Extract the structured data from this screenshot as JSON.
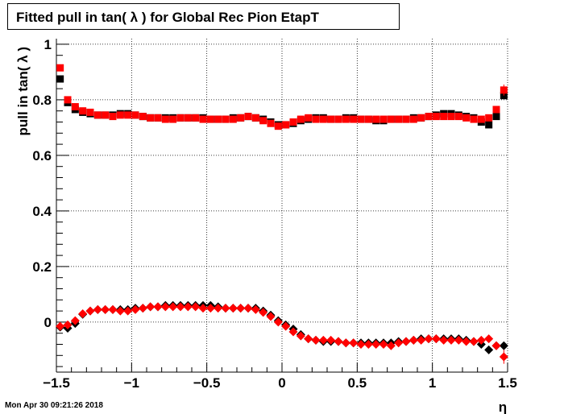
{
  "title": "Fitted pull in tan( λ ) for Global Rec Pion EtapT",
  "footer_date": "Mon Apr 30 09:21:26 2018",
  "colors": {
    "series_black": "#000000",
    "series_red": "#ff0000",
    "grid": "#000000",
    "background": "#ffffff"
  },
  "chart_data": {
    "type": "scatter",
    "title": "Fitted pull in tan( λ ) for Global Rec Pion EtapT",
    "xlabel": "η",
    "ylabel": "pull in tan( λ )",
    "xlim": [
      -1.5,
      1.5
    ],
    "ylim": [
      -0.18,
      1.02
    ],
    "grid": true,
    "x_ticks": [
      -1.5,
      -1,
      -0.5,
      0,
      0.5,
      1,
      1.5
    ],
    "x_tick_labels": [
      "−1.5",
      "−1",
      "−0.5",
      "0",
      "0.5",
      "1",
      "1.5"
    ],
    "y_ticks": [
      0,
      0.2,
      0.4,
      0.6,
      0.8,
      1
    ],
    "y_tick_labels": [
      "0",
      "0.2",
      "0.4",
      "0.6",
      "0.8",
      "1"
    ],
    "x": [
      -1.475,
      -1.425,
      -1.375,
      -1.325,
      -1.275,
      -1.225,
      -1.175,
      -1.125,
      -1.075,
      -1.025,
      -0.975,
      -0.925,
      -0.875,
      -0.825,
      -0.775,
      -0.725,
      -0.675,
      -0.625,
      -0.575,
      -0.525,
      -0.475,
      -0.425,
      -0.375,
      -0.325,
      -0.275,
      -0.225,
      -0.175,
      -0.125,
      -0.075,
      -0.025,
      0.025,
      0.075,
      0.125,
      0.175,
      0.225,
      0.275,
      0.325,
      0.375,
      0.425,
      0.475,
      0.525,
      0.575,
      0.625,
      0.675,
      0.725,
      0.775,
      0.825,
      0.875,
      0.925,
      0.975,
      1.025,
      1.075,
      1.125,
      1.175,
      1.225,
      1.275,
      1.325,
      1.375,
      1.425,
      1.475
    ],
    "series": [
      {
        "marker": "square",
        "color": "#000000",
        "values": [
          0.875,
          0.79,
          0.765,
          0.755,
          0.75,
          0.745,
          0.745,
          0.745,
          0.75,
          0.75,
          0.745,
          0.74,
          0.735,
          0.735,
          0.735,
          0.735,
          0.735,
          0.735,
          0.735,
          0.735,
          0.73,
          0.73,
          0.73,
          0.735,
          0.735,
          0.74,
          0.735,
          0.73,
          0.72,
          0.71,
          0.71,
          0.715,
          0.725,
          0.73,
          0.735,
          0.735,
          0.73,
          0.73,
          0.735,
          0.735,
          0.73,
          0.73,
          0.725,
          0.725,
          0.73,
          0.73,
          0.73,
          0.735,
          0.735,
          0.74,
          0.745,
          0.75,
          0.75,
          0.745,
          0.74,
          0.735,
          0.72,
          0.71,
          0.74,
          0.815
        ]
      },
      {
        "marker": "square",
        "color": "#ff0000",
        "values": [
          0.915,
          0.8,
          0.775,
          0.76,
          0.755,
          0.745,
          0.745,
          0.74,
          0.745,
          0.745,
          0.745,
          0.74,
          0.735,
          0.735,
          0.73,
          0.73,
          0.735,
          0.735,
          0.735,
          0.73,
          0.73,
          0.73,
          0.73,
          0.73,
          0.735,
          0.74,
          0.735,
          0.725,
          0.715,
          0.705,
          0.71,
          0.72,
          0.73,
          0.735,
          0.73,
          0.73,
          0.73,
          0.73,
          0.73,
          0.73,
          0.73,
          0.73,
          0.73,
          0.73,
          0.73,
          0.73,
          0.73,
          0.73,
          0.735,
          0.74,
          0.74,
          0.74,
          0.74,
          0.74,
          0.735,
          0.73,
          0.73,
          0.735,
          0.765,
          0.835
        ]
      },
      {
        "marker": "diamond",
        "color": "#000000",
        "values": [
          -0.018,
          -0.022,
          -0.005,
          0.028,
          0.04,
          0.045,
          0.045,
          0.045,
          0.045,
          0.045,
          0.05,
          0.05,
          0.055,
          0.055,
          0.06,
          0.06,
          0.06,
          0.06,
          0.06,
          0.06,
          0.06,
          0.055,
          0.05,
          0.05,
          0.05,
          0.05,
          0.05,
          0.04,
          0.025,
          0.005,
          -0.01,
          -0.025,
          -0.045,
          -0.06,
          -0.065,
          -0.07,
          -0.07,
          -0.07,
          -0.075,
          -0.075,
          -0.075,
          -0.075,
          -0.075,
          -0.075,
          -0.075,
          -0.07,
          -0.07,
          -0.065,
          -0.06,
          -0.06,
          -0.06,
          -0.06,
          -0.06,
          -0.06,
          -0.065,
          -0.07,
          -0.08,
          -0.1,
          -0.085,
          -0.085
        ]
      },
      {
        "marker": "diamond",
        "color": "#ff0000",
        "values": [
          -0.015,
          -0.01,
          0.005,
          0.03,
          0.04,
          0.045,
          0.045,
          0.045,
          0.04,
          0.04,
          0.045,
          0.05,
          0.055,
          0.055,
          0.055,
          0.055,
          0.055,
          0.055,
          0.055,
          0.05,
          0.05,
          0.05,
          0.05,
          0.05,
          0.05,
          0.05,
          0.045,
          0.035,
          0.02,
          0.0,
          -0.015,
          -0.035,
          -0.05,
          -0.06,
          -0.065,
          -0.065,
          -0.065,
          -0.07,
          -0.075,
          -0.075,
          -0.08,
          -0.08,
          -0.08,
          -0.08,
          -0.085,
          -0.075,
          -0.07,
          -0.065,
          -0.065,
          -0.06,
          -0.06,
          -0.065,
          -0.065,
          -0.065,
          -0.07,
          -0.07,
          -0.065,
          -0.06,
          -0.085,
          -0.125
        ]
      }
    ]
  }
}
